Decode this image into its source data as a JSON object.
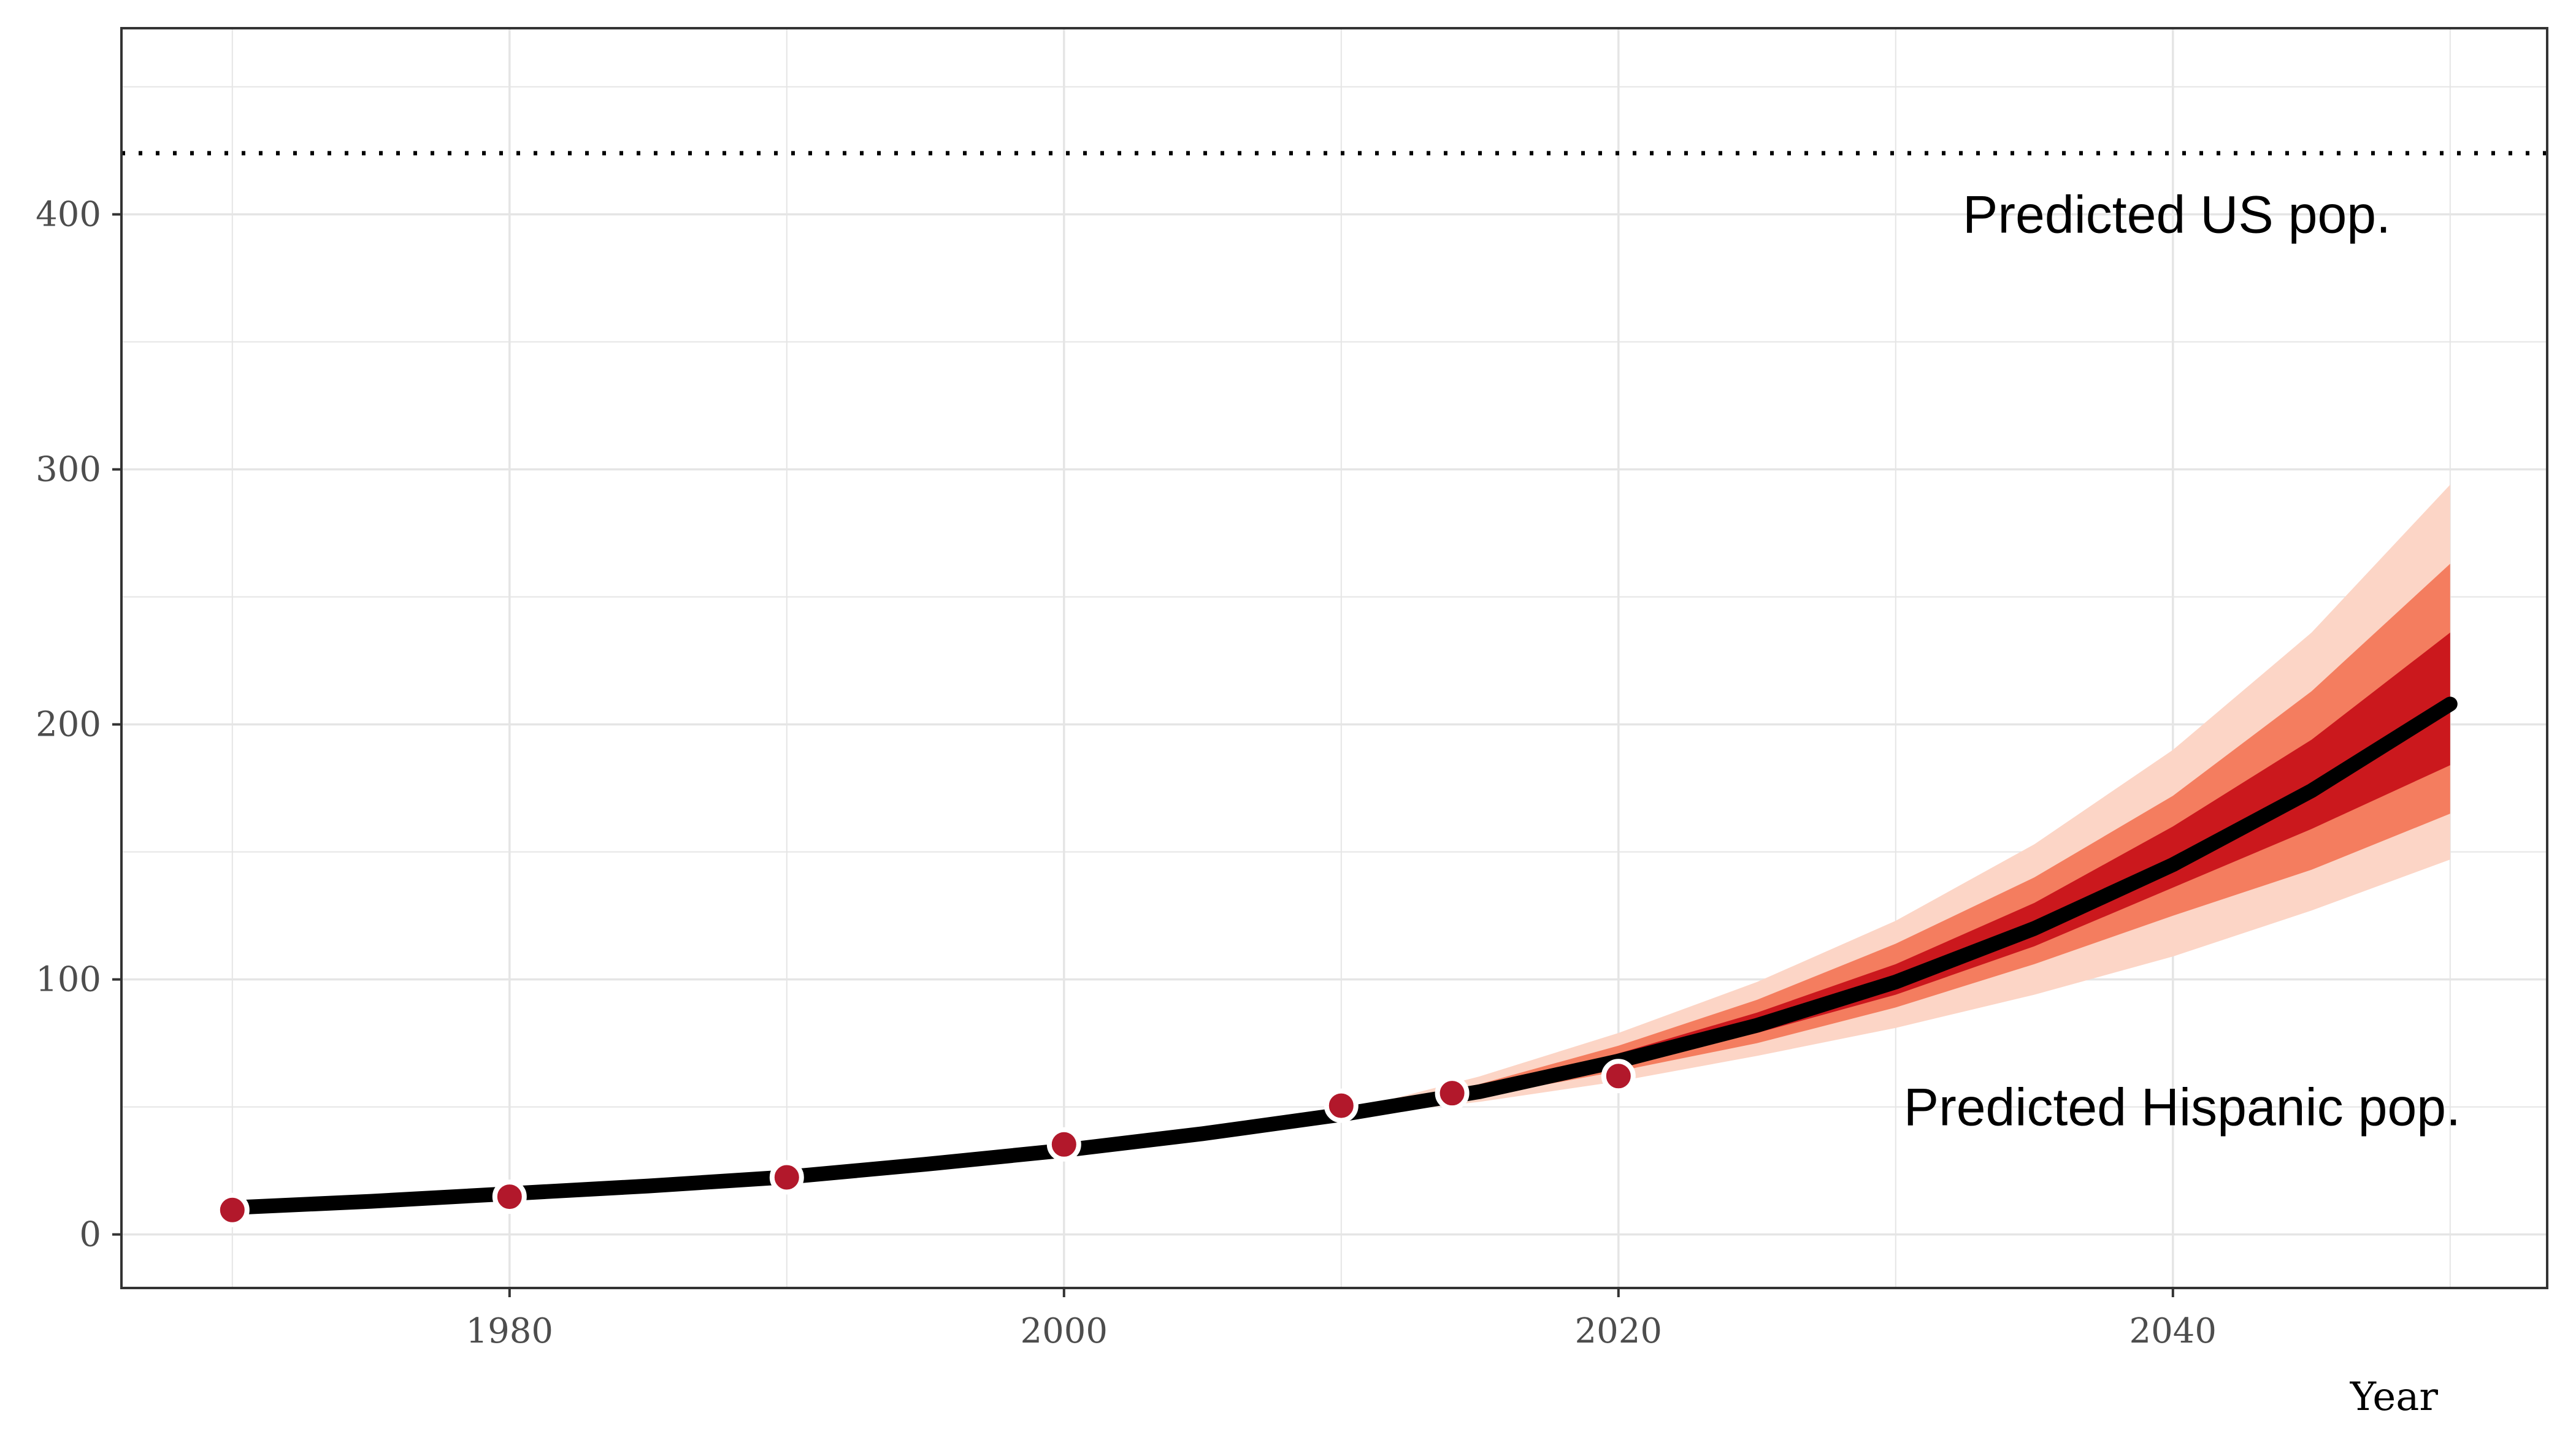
{
  "chart_data": {
    "type": "line",
    "title": "",
    "xlabel": "Year",
    "ylabel": "",
    "xlim": [
      1966,
      2053.5
    ],
    "ylim": [
      -21,
      473
    ],
    "x_ticks": [
      1980,
      2000,
      2020,
      2040
    ],
    "y_ticks": [
      0,
      100,
      200,
      300,
      400
    ],
    "x_minor_ticks": [
      1970,
      1990,
      2010,
      2030,
      2050
    ],
    "y_minor_ticks": [
      50,
      150,
      250,
      350,
      450
    ],
    "grid": true,
    "legend": "none",
    "colors": {
      "line": "#000000",
      "points": "#b2182b",
      "band_outer": "#fcd5c6",
      "band_mid": "#f47d5f",
      "band_inner": "#cb181d",
      "grid": "#e5e5e5",
      "panel_border": "#333333"
    },
    "series": [
      {
        "kind": "forecast-median",
        "x": [
          1970,
          1975,
          1980,
          1985,
          1990,
          1995,
          2000,
          2005,
          2010,
          2015,
          2020,
          2025,
          2030,
          2035,
          2040,
          2045,
          2050
        ],
        "y": [
          10.5,
          13,
          16,
          19,
          22.5,
          27.5,
          33,
          39.5,
          47,
          56,
          68,
          82,
          99,
          120,
          145,
          174,
          208
        ]
      },
      {
        "kind": "observed-points",
        "x": [
          1970,
          1980,
          1990,
          2000,
          2010,
          2014,
          2020
        ],
        "y": [
          9.6,
          14.8,
          22.4,
          35.3,
          50.5,
          55.4,
          62.1
        ]
      }
    ],
    "bands": [
      {
        "level": "outer",
        "x": [
          2010,
          2015,
          2020,
          2025,
          2030,
          2035,
          2040,
          2045,
          2050
        ],
        "lower": [
          46,
          52,
          60,
          70,
          81,
          94,
          109,
          127,
          147
        ],
        "upper": [
          48,
          62,
          79,
          99,
          123,
          153,
          190,
          236,
          294
        ]
      },
      {
        "level": "mid",
        "x": [
          2010,
          2015,
          2020,
          2025,
          2030,
          2035,
          2040,
          2045,
          2050
        ],
        "lower": [
          46.5,
          54,
          64,
          75,
          89,
          106,
          125,
          143,
          165
        ],
        "upper": [
          47.5,
          59,
          74,
          92,
          114,
          140,
          172,
          213,
          263
        ]
      },
      {
        "level": "inner",
        "x": [
          2010,
          2015,
          2020,
          2025,
          2030,
          2035,
          2040,
          2045,
          2050
        ],
        "lower": [
          46.8,
          55,
          66,
          79,
          94,
          113,
          136,
          159,
          184
        ],
        "upper": [
          47.2,
          57.5,
          71,
          87,
          106,
          130,
          160,
          194,
          236
        ]
      }
    ],
    "reference_line": {
      "y": 424
    },
    "annotations": [
      {
        "text": "Predicted US pop.",
        "x": 2040,
        "y": 400
      },
      {
        "text": "Predicted Hispanic pop.",
        "x": 2040,
        "y": 50
      }
    ]
  }
}
